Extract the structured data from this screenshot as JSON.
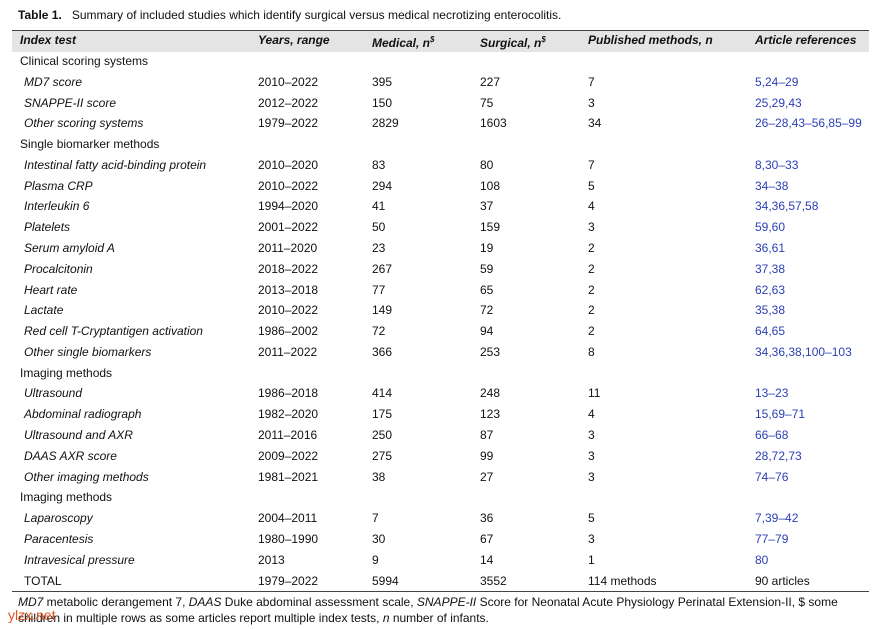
{
  "title": {
    "label": "Table 1.",
    "text": "Summary of included studies which identify surgical versus medical necrotizing enterocolitis."
  },
  "header": {
    "columns": [
      {
        "text": "Index test"
      },
      {
        "text": "Years, range"
      },
      {
        "text": "Medical, n",
        "sup": "$"
      },
      {
        "text": "Surgical, n",
        "sup": "$"
      },
      {
        "text": "Published methods, n"
      },
      {
        "text": "Article references"
      }
    ]
  },
  "sections": [
    {
      "title": "Clinical scoring systems",
      "rows": [
        [
          "MD7 score",
          "2010–2022",
          395,
          227,
          7,
          "5,24–29"
        ],
        [
          "SNAPPE-II score",
          "2012–2022",
          150,
          75,
          3,
          "25,29,43"
        ],
        [
          "Other scoring systems",
          "1979–2022",
          2829,
          1603,
          34,
          "26–28,43–56,85–99"
        ]
      ]
    },
    {
      "title": "Single biomarker methods",
      "rows": [
        [
          "Intestinal fatty acid-binding protein",
          "2010–2020",
          83,
          80,
          7,
          "8,30–33"
        ],
        [
          "Plasma CRP",
          "2010–2022",
          294,
          108,
          5,
          "34–38"
        ],
        [
          "Interleukin 6",
          "1994–2020",
          41,
          37,
          4,
          "34,36,57,58"
        ],
        [
          "Platelets",
          "2001–2022",
          50,
          159,
          3,
          "59,60"
        ],
        [
          "Serum amyloid A",
          "2011–2020",
          23,
          19,
          2,
          "36,61"
        ],
        [
          "Procalcitonin",
          "2018–2022",
          267,
          59,
          2,
          "37,38"
        ],
        [
          "Heart rate",
          "2013–2018",
          77,
          65,
          2,
          "62,63"
        ],
        [
          "Lactate",
          "2010–2022",
          149,
          72,
          2,
          "35,38"
        ],
        [
          "Red cell T-Cryptantigen activation",
          "1986–2002",
          72,
          94,
          2,
          "64,65"
        ],
        [
          "Other single biomarkers",
          "2011–2022",
          366,
          253,
          8,
          "34,36,38,100–103"
        ]
      ]
    },
    {
      "title": "Imaging methods",
      "rows": [
        [
          "Ultrasound",
          "1986–2018",
          414,
          248,
          11,
          "13–23"
        ],
        [
          "Abdominal radiograph",
          "1982–2020",
          175,
          123,
          4,
          "15,69–71"
        ],
        [
          "Ultrasound and AXR",
          "2011–2016",
          250,
          87,
          3,
          "66–68"
        ],
        [
          "DAAS AXR score",
          "2009–2022",
          275,
          99,
          3,
          "28,72,73"
        ],
        [
          "Other imaging methods",
          "1981–2021",
          38,
          27,
          3,
          "74–76"
        ]
      ]
    },
    {
      "title": "Imaging methods",
      "rows": [
        [
          "Laparoscopy",
          "2004–2011",
          7,
          36,
          5,
          "7,39–42"
        ],
        [
          "Paracentesis",
          "1980–1990",
          30,
          67,
          3,
          "77–79"
        ],
        [
          "Intravesical pressure",
          "2013",
          9,
          14,
          1,
          "80"
        ]
      ]
    }
  ],
  "total": [
    "TOTAL",
    "1979–2022",
    5994,
    3552,
    "114 methods",
    "90 articles"
  ],
  "footnote": [
    {
      "text": "MD7",
      "italic": true
    },
    {
      "text": " metabolic derangement 7, ",
      "italic": false
    },
    {
      "text": "DAAS",
      "italic": true
    },
    {
      "text": " Duke abdominal assessment scale, ",
      "italic": false
    },
    {
      "text": "SNAPPE-II",
      "italic": true
    },
    {
      "text": " Score for Neonatal Acute Physiology Perinatal Extension-II, $ some children in multiple rows as some articles report multiple index tests, ",
      "italic": false
    },
    {
      "text": "n",
      "italic": true
    },
    {
      "text": " number of infants.",
      "italic": false
    }
  ],
  "watermark": "ylzx.net"
}
